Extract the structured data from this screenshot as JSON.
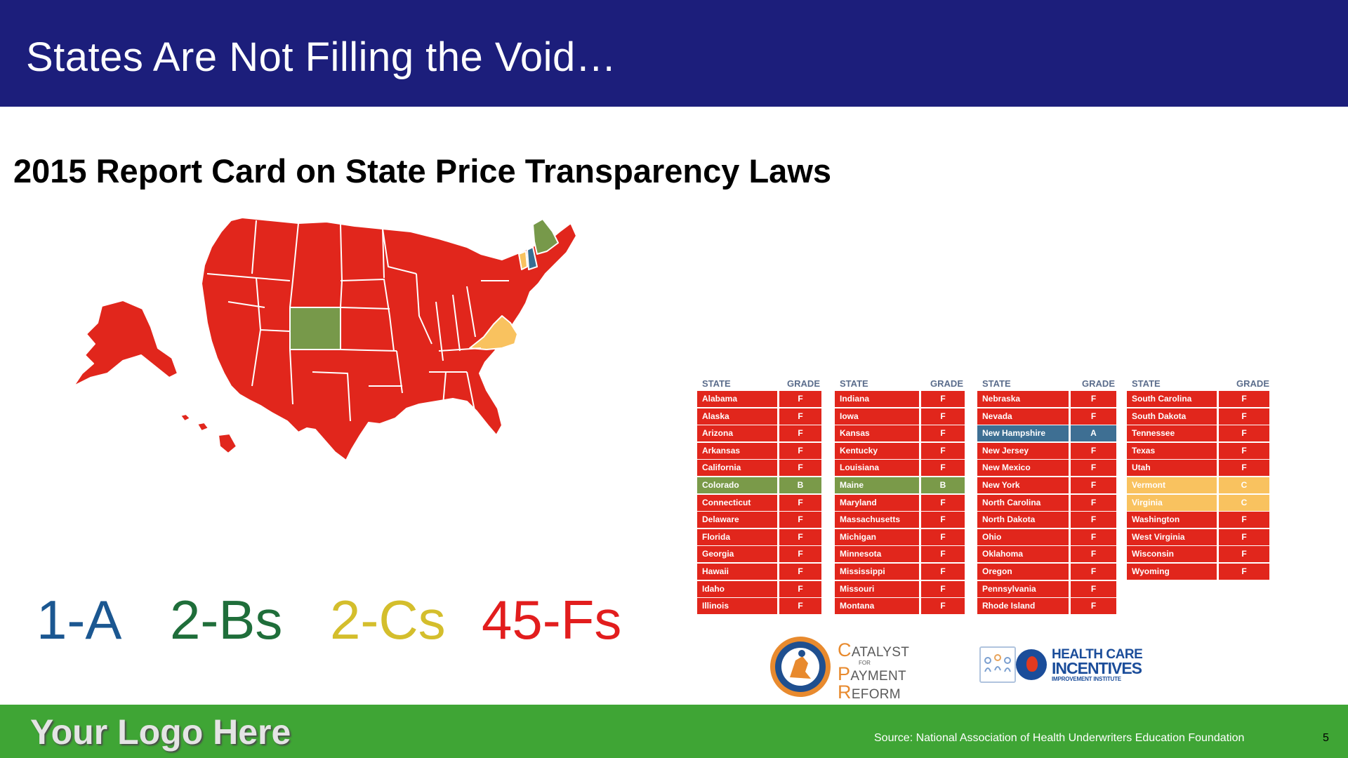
{
  "header": {
    "title": "States Are Not Filling the Void…"
  },
  "subtitle": "2015 Report Card on State Price Transparency Laws",
  "colors": {
    "header_bg": "#1c1e7b",
    "footer_bg": "#3fa535",
    "grade_A": "#3e6f93",
    "grade_B": "#7a9a49",
    "grade_C": "#f9c25f",
    "grade_F": "#e1261c",
    "map_F": "#e1261c",
    "map_B": "#77994a",
    "map_C": "#f9c25f",
    "map_A": "#376e93"
  },
  "map": {
    "icon": "us-states-map"
  },
  "counts": [
    {
      "text": "1-A",
      "color": "#1b5791"
    },
    {
      "text": "2-Bs",
      "color": "#1f6e3a"
    },
    {
      "text": "2-Cs",
      "color": "#d4be2c"
    },
    {
      "text": "45-Fs",
      "color": "#e21d1d"
    }
  ],
  "table": {
    "header_state": "STATE",
    "header_grade": "GRADE",
    "columns": [
      [
        {
          "state": "Alabama",
          "grade": "F"
        },
        {
          "state": "Alaska",
          "grade": "F"
        },
        {
          "state": "Arizona",
          "grade": "F"
        },
        {
          "state": "Arkansas",
          "grade": "F"
        },
        {
          "state": "California",
          "grade": "F"
        },
        {
          "state": "Colorado",
          "grade": "B"
        },
        {
          "state": "Connecticut",
          "grade": "F"
        },
        {
          "state": "Delaware",
          "grade": "F"
        },
        {
          "state": "Florida",
          "grade": "F"
        },
        {
          "state": "Georgia",
          "grade": "F"
        },
        {
          "state": "Hawaii",
          "grade": "F"
        },
        {
          "state": "Idaho",
          "grade": "F"
        },
        {
          "state": "Illinois",
          "grade": "F"
        }
      ],
      [
        {
          "state": "Indiana",
          "grade": "F"
        },
        {
          "state": "Iowa",
          "grade": "F"
        },
        {
          "state": "Kansas",
          "grade": "F"
        },
        {
          "state": "Kentucky",
          "grade": "F"
        },
        {
          "state": "Louisiana",
          "grade": "F"
        },
        {
          "state": "Maine",
          "grade": "B"
        },
        {
          "state": "Maryland",
          "grade": "F"
        },
        {
          "state": "Massachusetts",
          "grade": "F"
        },
        {
          "state": "Michigan",
          "grade": "F"
        },
        {
          "state": "Minnesota",
          "grade": "F"
        },
        {
          "state": "Mississippi",
          "grade": "F"
        },
        {
          "state": "Missouri",
          "grade": "F"
        },
        {
          "state": "Montana",
          "grade": "F"
        }
      ],
      [
        {
          "state": "Nebraska",
          "grade": "F"
        },
        {
          "state": "Nevada",
          "grade": "F"
        },
        {
          "state": "New Hampshire",
          "grade": "A"
        },
        {
          "state": "New Jersey",
          "grade": "F"
        },
        {
          "state": "New Mexico",
          "grade": "F"
        },
        {
          "state": "New York",
          "grade": "F"
        },
        {
          "state": "North Carolina",
          "grade": "F"
        },
        {
          "state": "North Dakota",
          "grade": "F"
        },
        {
          "state": "Ohio",
          "grade": "F"
        },
        {
          "state": "Oklahoma",
          "grade": "F"
        },
        {
          "state": "Oregon",
          "grade": "F"
        },
        {
          "state": "Pennsylvania",
          "grade": "F"
        },
        {
          "state": "Rhode Island",
          "grade": "F"
        }
      ],
      [
        {
          "state": "South Carolina",
          "grade": "F"
        },
        {
          "state": "South Dakota",
          "grade": "F"
        },
        {
          "state": "Tennessee",
          "grade": "F"
        },
        {
          "state": "Texas",
          "grade": "F"
        },
        {
          "state": "Utah",
          "grade": "F"
        },
        {
          "state": "Vermont",
          "grade": "C"
        },
        {
          "state": "Virginia",
          "grade": "C"
        },
        {
          "state": "Washington",
          "grade": "F"
        },
        {
          "state": "West Virginia",
          "grade": "F"
        },
        {
          "state": "Wisconsin",
          "grade": "F"
        },
        {
          "state": "Wyoming",
          "grade": "F"
        }
      ]
    ]
  },
  "logos": {
    "cpr_badge_icon": "our-health-care-system-needs-cpr-badge",
    "cpr_line1_initial": "C",
    "cpr_line1_rest": "ATALYST",
    "cpr_for": "FOR",
    "cpr_line2_initial": "P",
    "cpr_line2_rest": "AYMENT",
    "cpr_line3_initial": "R",
    "cpr_line3_rest": "EFORM",
    "hci_line1": "HEALTH CARE",
    "hci_line2": "INCENTIVES",
    "hci_line3": "IMPROVEMENT INSTITUTE",
    "hci_icon": "health-care-incentives-logo-icon"
  },
  "footer": {
    "logo_text": "Your Logo Here",
    "source": "Source: National Association of Health Underwriters Education Foundation",
    "page_number": "5"
  }
}
